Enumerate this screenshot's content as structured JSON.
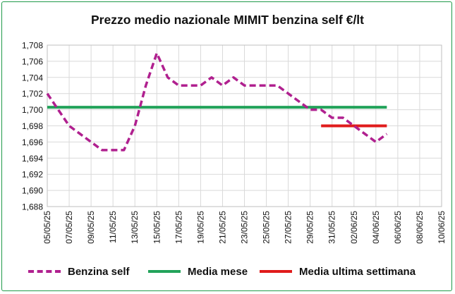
{
  "chart_data": {
    "type": "line",
    "title": "Prezzo medio nazionale MIMIT benzina self €/lt",
    "xlabel": "",
    "ylabel": "",
    "ylim": [
      1.688,
      1.708
    ],
    "y_ticks": [
      "1,688",
      "1,690",
      "1,692",
      "1,694",
      "1,696",
      "1,698",
      "1,700",
      "1,702",
      "1,704",
      "1,706",
      "1,708"
    ],
    "x_ticks": [
      "05/05/25",
      "07/05/25",
      "09/05/25",
      "11/05/25",
      "13/05/25",
      "15/05/25",
      "17/05/25",
      "19/05/25",
      "21/05/25",
      "23/05/25",
      "25/05/25",
      "27/05/25",
      "29/05/25",
      "31/05/25",
      "02/06/25",
      "04/06/25",
      "06/06/25",
      "08/06/25",
      "10/06/25"
    ],
    "grid": true,
    "legend_position": "bottom",
    "series": [
      {
        "name": "Benzina self",
        "color": "#b0208f",
        "style": "dashed",
        "x": [
          "05/05/25",
          "06/05/25",
          "07/05/25",
          "08/05/25",
          "09/05/25",
          "10/05/25",
          "11/05/25",
          "12/05/25",
          "13/05/25",
          "14/05/25",
          "15/05/25",
          "16/05/25",
          "17/05/25",
          "18/05/25",
          "19/05/25",
          "20/05/25",
          "21/05/25",
          "22/05/25",
          "23/05/25",
          "24/05/25",
          "25/05/25",
          "26/05/25",
          "27/05/25",
          "28/05/25",
          "29/05/25",
          "30/05/25",
          "31/05/25",
          "01/06/25",
          "02/06/25",
          "03/06/25",
          "04/06/25",
          "05/06/25"
        ],
        "values": [
          1.702,
          1.7,
          1.698,
          1.697,
          1.696,
          1.695,
          1.695,
          1.695,
          1.698,
          1.703,
          1.707,
          1.704,
          1.703,
          1.703,
          1.703,
          1.704,
          1.703,
          1.704,
          1.703,
          1.703,
          1.703,
          1.703,
          1.702,
          1.701,
          1.7,
          1.7,
          1.699,
          1.699,
          1.698,
          1.697,
          1.696,
          1.697
        ]
      },
      {
        "name": "Media mese",
        "color": "#22a35a",
        "style": "solid",
        "x": [
          "05/05/25",
          "05/06/25"
        ],
        "values": [
          1.7003,
          1.7003
        ]
      },
      {
        "name": "Media ultima settimana",
        "color": "#e01b1b",
        "style": "solid",
        "x": [
          "30/05/25",
          "05/06/25"
        ],
        "values": [
          1.698,
          1.698
        ]
      }
    ]
  }
}
